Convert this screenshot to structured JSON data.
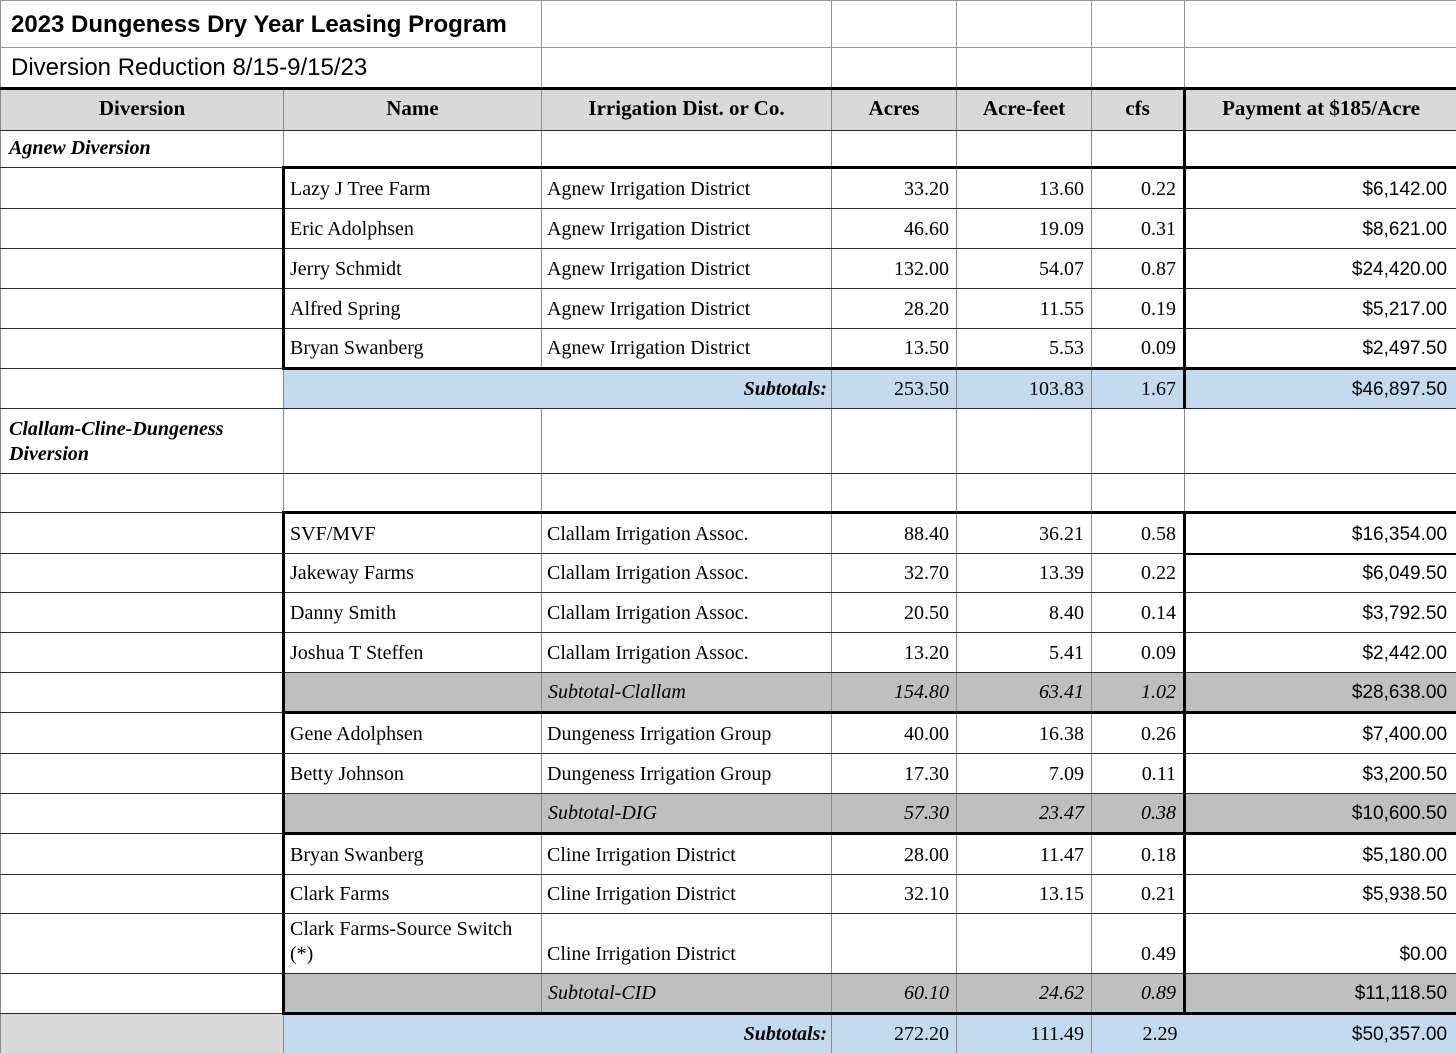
{
  "title_row": {
    "text": "2023 Dungeness Dry Year Leasing Program"
  },
  "subtitle_row": {
    "text": "Diversion Reduction 8/15-9/15/23"
  },
  "header_row": {
    "labels": [
      "Diversion",
      "Name",
      "Irrigation Dist. or Co.",
      "Acres",
      "Acre-feet",
      "cfs",
      "Payment at $185/Acre"
    ]
  },
  "colors": {
    "header_fill": "#d9d9d9",
    "subtotal_fill": "#bfbfbf",
    "grand_subtotal_fill": "#c4daee",
    "grand_left_cell_fill": "#d9d9d9",
    "thick_border": "#000000"
  },
  "body_rows": [
    {
      "kind": "section",
      "label": "Agnew Diversion"
    },
    {
      "kind": "lease",
      "name": "Lazy J Tree Farm",
      "district": "Agnew Irrigation District",
      "acres": "33.20",
      "acre_feet": "13.60",
      "cfs": "0.22",
      "payment": "$6,142.00"
    },
    {
      "kind": "lease",
      "name": "Eric Adolphsen",
      "district": "Agnew Irrigation District",
      "acres": "46.60",
      "acre_feet": "19.09",
      "cfs": "0.31",
      "payment": "$8,621.00"
    },
    {
      "kind": "lease",
      "name": "Jerry Schmidt",
      "district": "Agnew Irrigation District",
      "acres": "132.00",
      "acre_feet": "54.07",
      "cfs": "0.87",
      "payment": "$24,420.00"
    },
    {
      "kind": "lease",
      "name": "Alfred Spring",
      "district": "Agnew Irrigation District",
      "acres": "28.20",
      "acre_feet": "11.55",
      "cfs": "0.19",
      "payment": "$5,217.00"
    },
    {
      "kind": "lease",
      "name": "Bryan Swanberg",
      "district": "Agnew Irrigation District",
      "acres": "13.50",
      "acre_feet": "5.53",
      "cfs": "0.09",
      "payment": "$2,497.50"
    },
    {
      "kind": "grand",
      "label": "Subtotals:",
      "acres": "253.50",
      "acre_feet": "103.83",
      "cfs": "1.67",
      "payment": "$46,897.50"
    },
    {
      "kind": "section",
      "label": "Clallam-Cline-Dungeness Diversion"
    },
    {
      "kind": "blank"
    },
    {
      "kind": "lease",
      "name": "SVF/MVF",
      "district": "Clallam Irrigation Assoc.",
      "acres": "88.40",
      "acre_feet": "36.21",
      "cfs": "0.58",
      "payment": "$16,354.00"
    },
    {
      "kind": "lease",
      "name": "Jakeway Farms",
      "district": "Clallam Irrigation Assoc.",
      "acres": "32.70",
      "acre_feet": "13.39",
      "cfs": "0.22",
      "payment": "$6,049.50"
    },
    {
      "kind": "lease",
      "name": "Danny Smith",
      "district": "Clallam Irrigation Assoc.",
      "acres": "20.50",
      "acre_feet": "8.40",
      "cfs": "0.14",
      "payment": "$3,792.50"
    },
    {
      "kind": "lease",
      "name": "Joshua T Steffen",
      "district": "Clallam Irrigation Assoc.",
      "acres": "13.20",
      "acre_feet": "5.41",
      "cfs": "0.09",
      "payment": "$2,442.00"
    },
    {
      "kind": "subtotal",
      "label": "Subtotal-Clallam",
      "acres": "154.80",
      "acre_feet": "63.41",
      "cfs": "1.02",
      "payment": "$28,638.00"
    },
    {
      "kind": "lease",
      "name": "Gene Adolphsen",
      "district": "Dungeness Irrigation Group",
      "acres": "40.00",
      "acre_feet": "16.38",
      "cfs": "0.26",
      "payment": "$7,400.00"
    },
    {
      "kind": "lease",
      "name": "Betty Johnson",
      "district": "Dungeness Irrigation Group",
      "acres": "17.30",
      "acre_feet": "7.09",
      "cfs": "0.11",
      "payment": "$3,200.50"
    },
    {
      "kind": "subtotal",
      "label": "Subtotal-DIG",
      "acres": "57.30",
      "acre_feet": "23.47",
      "cfs": "0.38",
      "payment": "$10,600.50"
    },
    {
      "kind": "lease",
      "name": "Bryan Swanberg",
      "district": "Cline Irrigation District",
      "acres": "28.00",
      "acre_feet": "11.47",
      "cfs": "0.18",
      "payment": "$5,180.00"
    },
    {
      "kind": "lease",
      "name": "Clark Farms",
      "district": "Cline Irrigation District",
      "acres": "32.10",
      "acre_feet": "13.15",
      "cfs": "0.21",
      "payment": "$5,938.50"
    },
    {
      "kind": "lease",
      "name": "Clark Farms-Source Switch (*)",
      "district": "Cline Irrigation District",
      "acres": "",
      "acre_feet": "",
      "cfs": "0.49",
      "payment": "$0.00"
    },
    {
      "kind": "subtotal",
      "label": "Subtotal-CID",
      "acres": "60.10",
      "acre_feet": "24.62",
      "cfs": "0.89",
      "payment": "$11,118.50"
    },
    {
      "kind": "grand",
      "label": "Subtotals:",
      "acres": "272.20",
      "acre_feet": "111.49",
      "cfs": "2.29",
      "payment": "$50,357.00"
    }
  ]
}
